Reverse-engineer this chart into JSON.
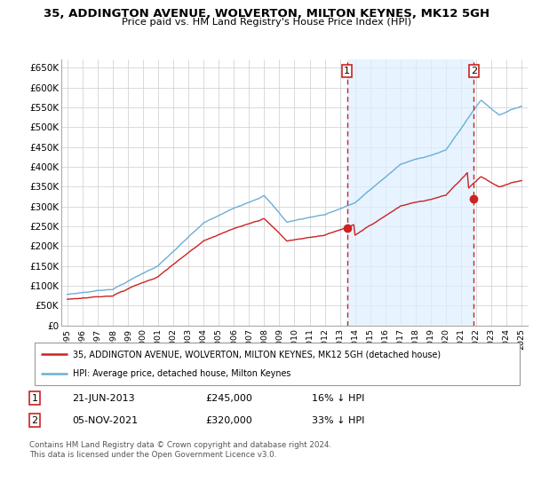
{
  "title1": "35, ADDINGTON AVENUE, WOLVERTON, MILTON KEYNES, MK12 5GH",
  "title2": "Price paid vs. HM Land Registry's House Price Index (HPI)",
  "ylim": [
    0,
    670000
  ],
  "yticks": [
    0,
    50000,
    100000,
    150000,
    200000,
    250000,
    300000,
    350000,
    400000,
    450000,
    500000,
    550000,
    600000,
    650000
  ],
  "ytick_labels": [
    "£0",
    "£50K",
    "£100K",
    "£150K",
    "£200K",
    "£250K",
    "£300K",
    "£350K",
    "£400K",
    "£450K",
    "£500K",
    "£550K",
    "£600K",
    "£650K"
  ],
  "sale1_year": 2013.47,
  "sale1_price": 245000,
  "sale2_year": 2021.84,
  "sale2_price": 320000,
  "legend_line1": "35, ADDINGTON AVENUE, WOLVERTON, MILTON KEYNES, MK12 5GH (detached house)",
  "legend_line2": "HPI: Average price, detached house, Milton Keynes",
  "table_row1": [
    "1",
    "21-JUN-2013",
    "£245,000",
    "16% ↓ HPI"
  ],
  "table_row2": [
    "2",
    "05-NOV-2021",
    "£320,000",
    "33% ↓ HPI"
  ],
  "footnote1": "Contains HM Land Registry data © Crown copyright and database right 2024.",
  "footnote2": "This data is licensed under the Open Government Licence v3.0.",
  "hpi_color": "#6baed6",
  "price_color": "#cc2222",
  "shade_color": "#ddeeff",
  "grid_color": "#cccccc",
  "bg_color": "#ffffff"
}
